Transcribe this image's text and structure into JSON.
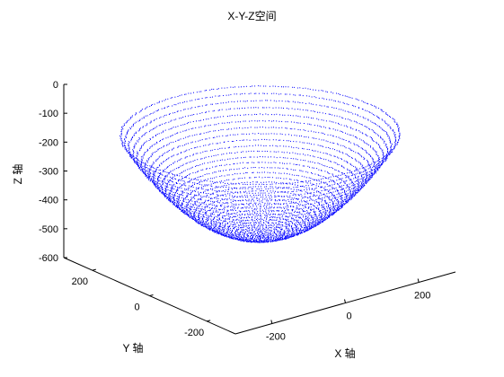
{
  "chart_data": {
    "type": "scatter",
    "title": "X-Y-Z空间",
    "xlabel": "X 轴",
    "ylabel": "Y 轴",
    "zlabel": "Z 轴",
    "xlim": [
      -300,
      300
    ],
    "ylim": [
      -300,
      300
    ],
    "zlim": [
      -600,
      0
    ],
    "x_ticks": [
      "-200",
      "0",
      "200"
    ],
    "y_ticks": [
      "-200",
      "0",
      "200"
    ],
    "z_ticks": [
      "0",
      "-100",
      "-200",
      "-300",
      "-400",
      "-500",
      "-600"
    ],
    "grid": false,
    "marker_color": "#0000ff",
    "surface": {
      "description_of_shape": "bowl",
      "radius": 300,
      "z_top": -150,
      "z_bottom": -500
    }
  }
}
